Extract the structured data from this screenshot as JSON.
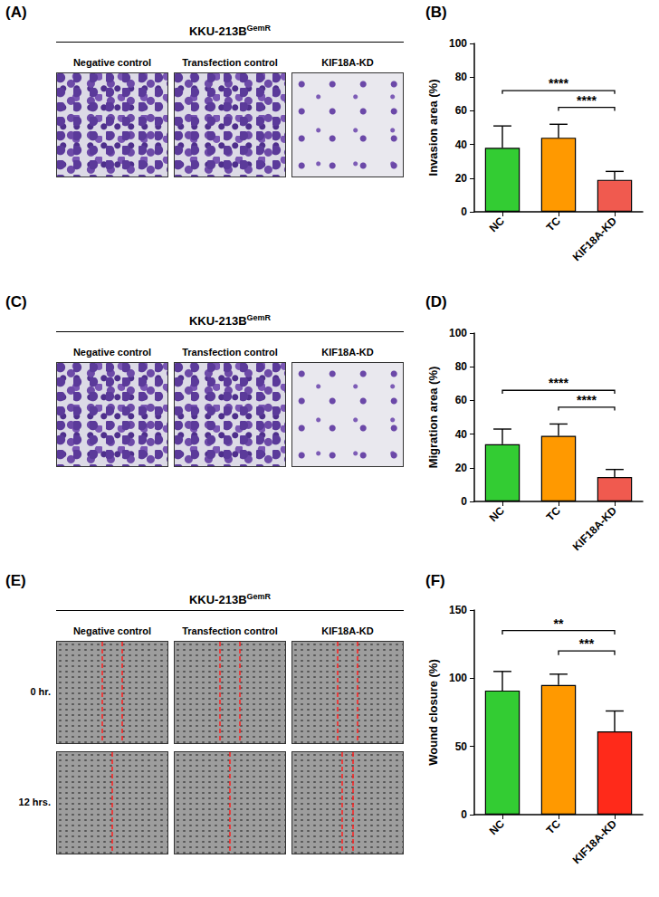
{
  "image_panels": [
    {
      "letter": "(A)",
      "cell_line": "KKU-213B",
      "cell_line_superscript": "GemR",
      "columns": [
        "Negative control",
        "Transfection control",
        "KIF18A-KD"
      ]
    },
    {
      "letter": "(C)",
      "cell_line": "KKU-213B",
      "cell_line_superscript": "GemR",
      "columns": [
        "Negative control",
        "Transfection control",
        "KIF18A-KD"
      ]
    },
    {
      "letter": "(E)",
      "cell_line": "KKU-213B",
      "cell_line_superscript": "GemR",
      "columns": [
        "Negative control",
        "Transfection control",
        "KIF18A-KD"
      ],
      "rows": [
        "0 hr.",
        "12 hrs."
      ]
    }
  ],
  "chart_data": [
    {
      "type": "bar",
      "letter": "(B)",
      "y_label": "Invasion area (%)",
      "categories": [
        "NC",
        "TC",
        "KIF18A-KD"
      ],
      "values": [
        38,
        44,
        19
      ],
      "errors": [
        13,
        8,
        5
      ],
      "colors": [
        "#33cc33",
        "#ff9900",
        "#f05a4f"
      ],
      "ylim": [
        0,
        100
      ],
      "yticks": [
        0,
        20,
        40,
        60,
        80,
        100
      ],
      "grid": false,
      "significance": [
        {
          "from": "TC",
          "to": "KIF18A-KD",
          "label": "****"
        },
        {
          "from": "NC",
          "to": "KIF18A-KD",
          "label": "****"
        }
      ]
    },
    {
      "type": "bar",
      "letter": "(D)",
      "y_label": "Migration area (%)",
      "categories": [
        "NC",
        "TC",
        "KIF18A-KD"
      ],
      "values": [
        34,
        39,
        14.5
      ],
      "errors": [
        9,
        7,
        4.5
      ],
      "colors": [
        "#33cc33",
        "#ff9900",
        "#f05a4f"
      ],
      "ylim": [
        0,
        100
      ],
      "yticks": [
        0,
        20,
        40,
        60,
        80,
        100
      ],
      "grid": false,
      "significance": [
        {
          "from": "TC",
          "to": "KIF18A-KD",
          "label": "****"
        },
        {
          "from": "NC",
          "to": "KIF18A-KD",
          "label": "****"
        }
      ]
    },
    {
      "type": "bar",
      "letter": "(F)",
      "y_label": "Wound closure (%)",
      "categories": [
        "NC",
        "TC",
        "KIF18A-KD"
      ],
      "values": [
        91,
        95,
        61
      ],
      "errors": [
        14,
        8,
        15
      ],
      "colors": [
        "#33cc33",
        "#ff9900",
        "#ff2a1a"
      ],
      "ylim": [
        0,
        150
      ],
      "yticks": [
        0,
        50,
        100,
        150
      ],
      "grid": false,
      "significance": [
        {
          "from": "TC",
          "to": "KIF18A-KD",
          "label": "***"
        },
        {
          "from": "NC",
          "to": "KIF18A-KD",
          "label": "**"
        }
      ]
    }
  ]
}
